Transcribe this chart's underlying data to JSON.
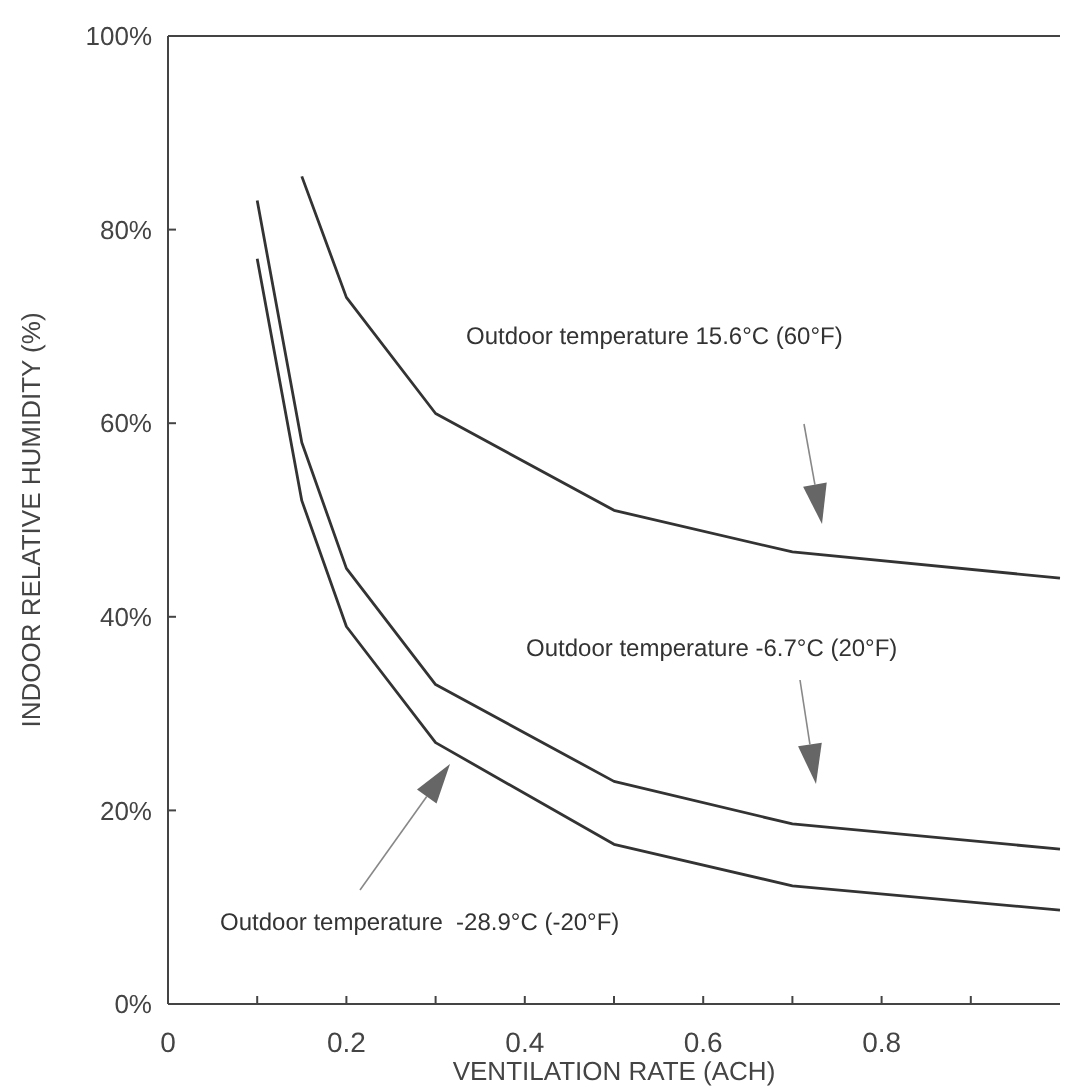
{
  "chart_data": {
    "type": "line",
    "xlabel": "VENTILATION RATE (ACH)",
    "ylabel": "INDOOR RELATIVE HUMIDITY (%)",
    "xlim": [
      0,
      1
    ],
    "xticks": [
      0,
      {
        "value": 0.1,
        "label": null
      },
      0.2,
      {
        "value": 0.3,
        "label": null
      },
      0.4,
      {
        "value": 0.5,
        "label": null
      },
      0.6,
      {
        "value": 0.7,
        "label": null
      },
      0.8,
      {
        "value": 0.9,
        "label": null
      }
    ],
    "ylim": [
      0,
      100
    ],
    "yticks": [
      {
        "value": 0,
        "label": "0%"
      },
      {
        "value": 20,
        "label": "20%"
      },
      {
        "value": 40,
        "label": "40%"
      },
      {
        "value": 60,
        "label": "60%"
      },
      {
        "value": 80,
        "label": "80%"
      },
      {
        "value": 100,
        "label": "100%"
      }
    ],
    "grid": false,
    "marker": "none",
    "line_style": "solid",
    "series": [
      {
        "color": "#333333",
        "x": [
          0.15,
          0.2,
          0.3,
          0.5,
          0.7,
          1.0
        ],
        "values": [
          85.5,
          73,
          61,
          51,
          46.7,
          44
        ]
      },
      {
        "color": "#333333",
        "x": [
          0.1,
          0.15,
          0.2,
          0.3,
          0.5,
          0.7,
          1.0
        ],
        "values": [
          83,
          58,
          45,
          33,
          23,
          18.6,
          16
        ]
      },
      {
        "color": "#333333",
        "x": [
          0.1,
          0.15,
          0.2,
          0.3,
          0.5,
          0.7,
          1.0
        ],
        "values": [
          77,
          52,
          39,
          27,
          16.5,
          12.2,
          9.7
        ]
      }
    ],
    "annotations": [
      "Outdoor temperature 15.6°C (60°F)",
      "Outdoor temperature -6.7°C (20°F)",
      "Outdoor temperature  -28.9°C (-20°F)"
    ]
  }
}
